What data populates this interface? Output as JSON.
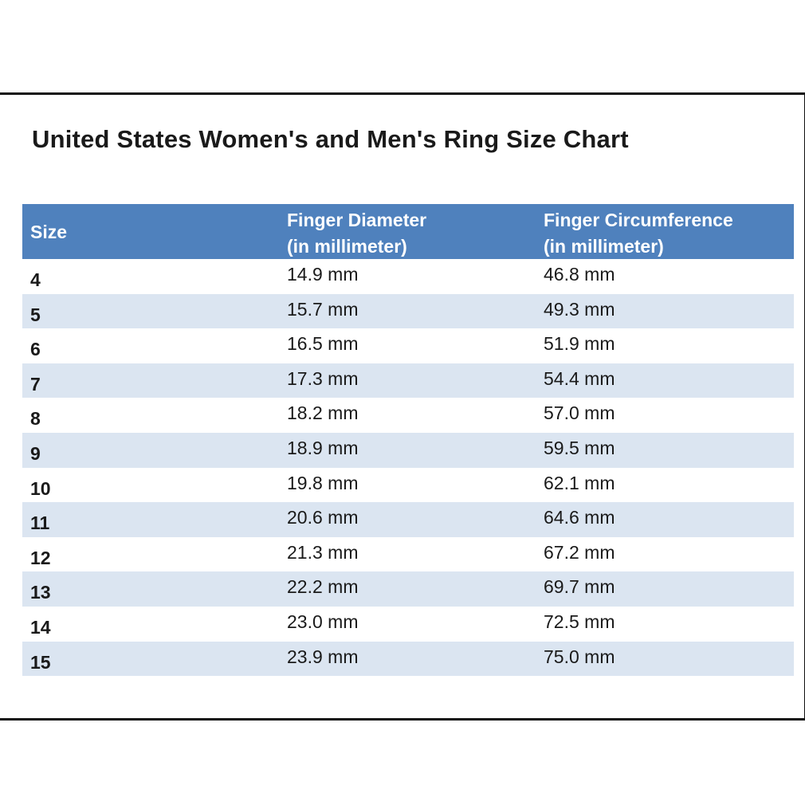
{
  "title": "United States Women's and Men's Ring Size Chart",
  "colors": {
    "header_bg": "#4f81bd",
    "band_row": "#dbe5f1"
  },
  "table": {
    "headers": {
      "size": "Size",
      "diameter_line1": "Finger Diameter",
      "diameter_line2": "(in millimeter)",
      "circumference_line1": "Finger Circumference",
      "circumference_line2": "(in millimeter)"
    },
    "rows": [
      {
        "size": "4",
        "diameter": "14.9 mm",
        "circumference": "46.8 mm"
      },
      {
        "size": "5",
        "diameter": "15.7 mm",
        "circumference": "49.3 mm"
      },
      {
        "size": "6",
        "diameter": "16.5 mm",
        "circumference": "51.9 mm"
      },
      {
        "size": "7",
        "diameter": "17.3 mm",
        "circumference": "54.4 mm"
      },
      {
        "size": "8",
        "diameter": "18.2 mm",
        "circumference": "57.0 mm"
      },
      {
        "size": "9",
        "diameter": "18.9 mm",
        "circumference": "59.5 mm"
      },
      {
        "size": "10",
        "diameter": "19.8 mm",
        "circumference": "62.1 mm"
      },
      {
        "size": "11",
        "diameter": "20.6 mm",
        "circumference": "64.6 mm"
      },
      {
        "size": "12",
        "diameter": "21.3 mm",
        "circumference": "67.2 mm"
      },
      {
        "size": "13",
        "diameter": "22.2 mm",
        "circumference": "69.7 mm"
      },
      {
        "size": "14",
        "diameter": "23.0 mm",
        "circumference": "72.5 mm"
      },
      {
        "size": "15",
        "diameter": "23.9 mm",
        "circumference": "75.0 mm"
      }
    ]
  }
}
